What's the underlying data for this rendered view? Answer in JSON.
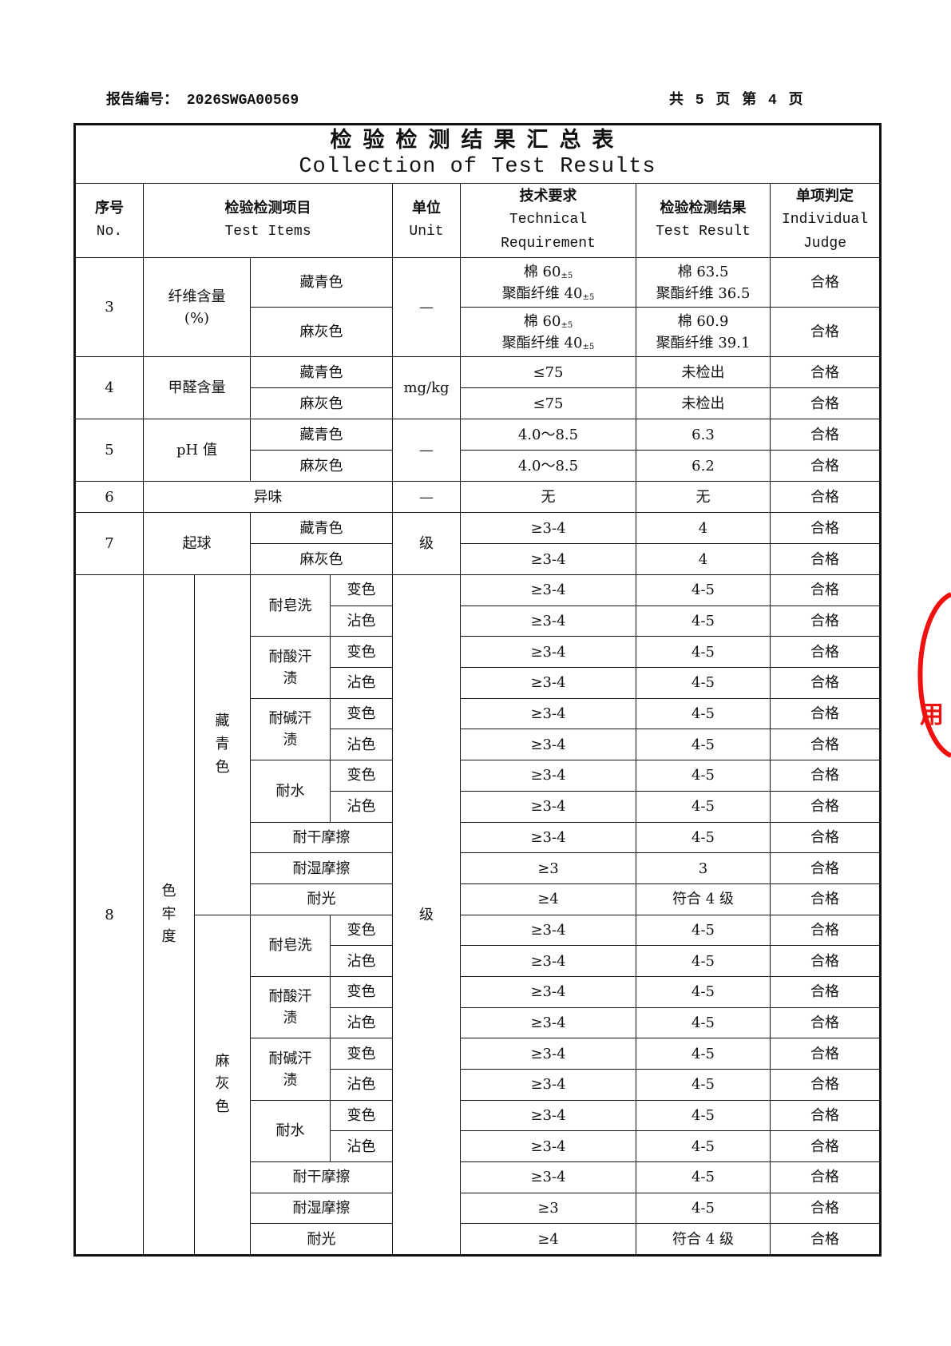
{
  "report_no": "报告编号：  2026SWGA00569",
  "page_info": "共 5 页  第 4 页",
  "title_cn": "检验检测结果汇总表",
  "title_en": "Collection of Test Results",
  "headers": {
    "no_cn": "序号",
    "no_en": "No.",
    "item_cn": "检验检测项目",
    "item_en": "Test Items",
    "unit_cn": "单位",
    "unit_en": "Unit",
    "req_cn": "技术要求",
    "req_en1": "Technical",
    "req_en2": "Requirement",
    "result_cn": "检验检测结果",
    "result_en": "Test Result",
    "judge_cn": "单项判定",
    "judge_en1": "Individual",
    "judge_en2": "Judge"
  },
  "rows": {
    "r3": {
      "no": "3",
      "item": "纤维含量",
      "item_unit": "(%)",
      "unit": "—",
      "a": {
        "color": "藏青色",
        "req1": "棉 60",
        "tol1": "±5",
        "req2": "聚酯纤维 40",
        "tol2": "±5",
        "res1": "棉 63.5",
        "res2": "聚酯纤维 36.5",
        "judge": "合格"
      },
      "b": {
        "color": "麻灰色",
        "req1": "棉 60",
        "tol1": "±5",
        "req2": "聚酯纤维 40",
        "tol2": "±5",
        "res1": "棉 60.9",
        "res2": "聚酯纤维 39.1",
        "judge": "合格"
      }
    },
    "r4": {
      "no": "4",
      "item": "甲醛含量",
      "unit": "mg/kg",
      "a": {
        "color": "藏青色",
        "req": "≤75",
        "res": "未检出",
        "judge": "合格"
      },
      "b": {
        "color": "麻灰色",
        "req": "≤75",
        "res": "未检出",
        "judge": "合格"
      }
    },
    "r5": {
      "no": "5",
      "item": "pH 值",
      "unit": "—",
      "a": {
        "color": "藏青色",
        "req": "4.0～8.5",
        "res": "6.3",
        "judge": "合格"
      },
      "b": {
        "color": "麻灰色",
        "req": "4.0～8.5",
        "res": "6.2",
        "judge": "合格"
      }
    },
    "r6": {
      "no": "6",
      "item": "异味",
      "unit": "—",
      "req": "无",
      "res": "无",
      "judge": "合格"
    },
    "r7": {
      "no": "7",
      "item": "起球",
      "unit": "级",
      "a": {
        "color": "藏青色",
        "req": "≥3-4",
        "res": "4",
        "judge": "合格"
      },
      "b": {
        "color": "麻灰色",
        "req": "≥3-4",
        "res": "4",
        "judge": "合格"
      }
    },
    "r8": {
      "no": "8",
      "item": "色牢度",
      "unit": "级",
      "groups": [
        {
          "color": "藏青色",
          "tests": [
            {
              "name": "耐皂洗",
              "subs": [
                {
                  "type": "变色",
                  "req": "≥3-4",
                  "res": "4-5",
                  "judge": "合格"
                },
                {
                  "type": "沾色",
                  "req": "≥3-4",
                  "res": "4-5",
                  "judge": "合格"
                }
              ]
            },
            {
              "name": "耐酸汗渍",
              "subs": [
                {
                  "type": "变色",
                  "req": "≥3-4",
                  "res": "4-5",
                  "judge": "合格"
                },
                {
                  "type": "沾色",
                  "req": "≥3-4",
                  "res": "4-5",
                  "judge": "合格"
                }
              ]
            },
            {
              "name": "耐碱汗渍",
              "subs": [
                {
                  "type": "变色",
                  "req": "≥3-4",
                  "res": "4-5",
                  "judge": "合格"
                },
                {
                  "type": "沾色",
                  "req": "≥3-4",
                  "res": "4-5",
                  "judge": "合格"
                }
              ]
            },
            {
              "name": "耐水",
              "subs": [
                {
                  "type": "变色",
                  "req": "≥3-4",
                  "res": "4-5",
                  "judge": "合格"
                },
                {
                  "type": "沾色",
                  "req": "≥3-4",
                  "res": "4-5",
                  "judge": "合格"
                }
              ]
            },
            {
              "name": "耐干摩擦",
              "req": "≥3-4",
              "res": "4-5",
              "judge": "合格"
            },
            {
              "name": "耐湿摩擦",
              "req": "≥3",
              "res": "3",
              "judge": "合格"
            },
            {
              "name": "耐光",
              "req": "≥4",
              "res": "符合 4 级",
              "judge": "合格"
            }
          ]
        },
        {
          "color": "麻灰色",
          "tests": [
            {
              "name": "耐皂洗",
              "subs": [
                {
                  "type": "变色",
                  "req": "≥3-4",
                  "res": "4-5",
                  "judge": "合格"
                },
                {
                  "type": "沾色",
                  "req": "≥3-4",
                  "res": "4-5",
                  "judge": "合格"
                }
              ]
            },
            {
              "name": "耐酸汗渍",
              "subs": [
                {
                  "type": "变色",
                  "req": "≥3-4",
                  "res": "4-5",
                  "judge": "合格"
                },
                {
                  "type": "沾色",
                  "req": "≥3-4",
                  "res": "4-5",
                  "judge": "合格"
                }
              ]
            },
            {
              "name": "耐碱汗渍",
              "subs": [
                {
                  "type": "变色",
                  "req": "≥3-4",
                  "res": "4-5",
                  "judge": "合格"
                },
                {
                  "type": "沾色",
                  "req": "≥3-4",
                  "res": "4-5",
                  "judge": "合格"
                }
              ]
            },
            {
              "name": "耐水",
              "subs": [
                {
                  "type": "变色",
                  "req": "≥3-4",
                  "res": "4-5",
                  "judge": "合格"
                },
                {
                  "type": "沾色",
                  "req": "≥3-4",
                  "res": "4-5",
                  "judge": "合格"
                }
              ]
            },
            {
              "name": "耐干摩擦",
              "req": "≥3-4",
              "res": "4-5",
              "judge": "合格"
            },
            {
              "name": "耐湿摩擦",
              "req": "≥3",
              "res": "4-5",
              "judge": "合格"
            },
            {
              "name": "耐光",
              "req": "≥4",
              "res": "符合 4 级",
              "judge": "合格"
            }
          ]
        }
      ]
    }
  },
  "stamp": {
    "text": "专用章",
    "color": "#f01010"
  }
}
